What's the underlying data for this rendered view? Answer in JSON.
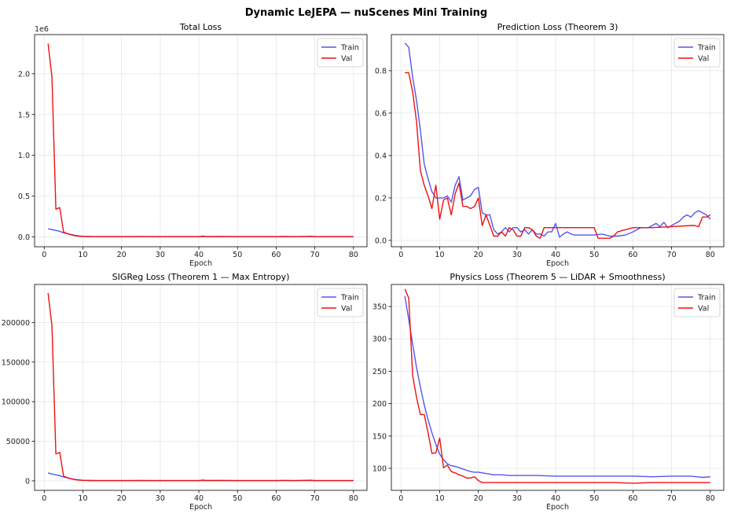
{
  "suptitle": "Dynamic LeJEPA — nuScenes Mini Training",
  "chart_data": [
    {
      "type": "line",
      "title": "Total Loss",
      "xlabel": "Epoch",
      "ylabel": "",
      "xlim": [
        -2.5,
        83.5
      ],
      "ylim": [
        -0.12,
        2.48
      ],
      "xticks": [
        0,
        10,
        20,
        30,
        40,
        50,
        60,
        70,
        80
      ],
      "yticks": [
        0.0,
        0.5,
        1.0,
        1.5,
        2.0
      ],
      "ytick_labels": [
        "0.0",
        "0.5",
        "1.0",
        "1.5",
        "2.0"
      ],
      "offset_text": "1e6",
      "grid": true,
      "legend_loc": "top-right",
      "series": [
        {
          "name": "Train",
          "color": "#5555ee",
          "x": [
            1,
            2,
            3,
            4,
            5,
            6,
            7,
            8,
            9,
            10,
            12,
            15,
            20,
            25,
            30,
            35,
            40,
            45,
            50,
            55,
            60,
            65,
            70,
            75,
            80
          ],
          "y": [
            0.1,
            0.09,
            0.08,
            0.07,
            0.05,
            0.04,
            0.03,
            0.02,
            0.012,
            0.008,
            0.005,
            0.004,
            0.004,
            0.004,
            0.004,
            0.004,
            0.004,
            0.004,
            0.004,
            0.004,
            0.004,
            0.004,
            0.004,
            0.004,
            0.004
          ]
        },
        {
          "name": "Val",
          "color": "#ee1111",
          "x": [
            1,
            2,
            3,
            4,
            5,
            6,
            7,
            8,
            9,
            10,
            12,
            15,
            20,
            25,
            30,
            35,
            40,
            41,
            42,
            45,
            50,
            55,
            60,
            62,
            65,
            69,
            70,
            75,
            80
          ],
          "y": [
            2.37,
            1.96,
            0.34,
            0.36,
            0.06,
            0.04,
            0.025,
            0.015,
            0.01,
            0.006,
            0.004,
            0.003,
            0.003,
            0.004,
            0.003,
            0.003,
            0.003,
            0.01,
            0.004,
            0.006,
            0.003,
            0.003,
            0.003,
            0.006,
            0.003,
            0.008,
            0.003,
            0.003,
            0.003
          ]
        }
      ]
    },
    {
      "type": "line",
      "title": "Prediction Loss (Theorem 3)",
      "xlabel": "Epoch",
      "ylabel": "",
      "xlim": [
        -2.5,
        83.5
      ],
      "ylim": [
        -0.03,
        0.97
      ],
      "xticks": [
        0,
        10,
        20,
        30,
        40,
        50,
        60,
        70,
        80
      ],
      "yticks": [
        0.0,
        0.2,
        0.4,
        0.6,
        0.8
      ],
      "ytick_labels": [
        "0.0",
        "0.2",
        "0.4",
        "0.6",
        "0.8"
      ],
      "offset_text": "",
      "grid": true,
      "legend_loc": "top-right",
      "series": [
        {
          "name": "Train",
          "color": "#5555ee",
          "x": [
            1,
            2,
            3,
            4,
            5,
            6,
            7,
            8,
            9,
            10,
            11,
            12,
            13,
            14,
            15,
            16,
            17,
            18,
            19,
            20,
            21,
            22,
            23,
            24,
            25,
            26,
            27,
            28,
            29,
            30,
            31,
            32,
            33,
            34,
            35,
            36,
            37,
            38,
            39,
            40,
            41,
            42,
            43,
            44,
            45,
            50,
            52,
            54,
            56,
            58,
            60,
            62,
            64,
            66,
            67,
            68,
            69,
            70,
            71,
            72,
            73,
            74,
            75,
            76,
            77,
            78,
            79,
            80
          ],
          "y": [
            0.93,
            0.91,
            0.77,
            0.66,
            0.52,
            0.36,
            0.29,
            0.23,
            0.2,
            0.2,
            0.2,
            0.21,
            0.18,
            0.26,
            0.3,
            0.19,
            0.2,
            0.21,
            0.24,
            0.25,
            0.13,
            0.12,
            0.12,
            0.05,
            0.03,
            0.04,
            0.06,
            0.04,
            0.06,
            0.06,
            0.04,
            0.05,
            0.03,
            0.05,
            0.03,
            0.03,
            0.02,
            0.04,
            0.04,
            0.08,
            0.015,
            0.03,
            0.04,
            0.03,
            0.025,
            0.025,
            0.03,
            0.02,
            0.02,
            0.025,
            0.04,
            0.06,
            0.06,
            0.08,
            0.065,
            0.085,
            0.06,
            0.07,
            0.08,
            0.09,
            0.11,
            0.12,
            0.11,
            0.13,
            0.14,
            0.13,
            0.12,
            0.1
          ]
        },
        {
          "name": "Val",
          "color": "#ee1111",
          "x": [
            1,
            2,
            3,
            4,
            5,
            6,
            7,
            8,
            9,
            10,
            11,
            12,
            13,
            14,
            15,
            16,
            17,
            18,
            19,
            20,
            21,
            22,
            23,
            24,
            25,
            26,
            27,
            28,
            29,
            30,
            31,
            32,
            33,
            34,
            35,
            36,
            37,
            38,
            39,
            40,
            45,
            50,
            51,
            52,
            53,
            54,
            55,
            56,
            60,
            65,
            70,
            75,
            76,
            77,
            78,
            79,
            80
          ],
          "y": [
            0.79,
            0.79,
            0.7,
            0.56,
            0.33,
            0.26,
            0.21,
            0.15,
            0.26,
            0.1,
            0.19,
            0.2,
            0.12,
            0.22,
            0.27,
            0.16,
            0.16,
            0.15,
            0.16,
            0.2,
            0.07,
            0.12,
            0.07,
            0.02,
            0.02,
            0.04,
            0.02,
            0.06,
            0.05,
            0.02,
            0.02,
            0.06,
            0.06,
            0.05,
            0.02,
            0.01,
            0.06,
            0.06,
            0.06,
            0.06,
            0.06,
            0.06,
            0.01,
            0.01,
            0.01,
            0.01,
            0.02,
            0.04,
            0.06,
            0.06,
            0.065,
            0.07,
            0.07,
            0.065,
            0.11,
            0.11,
            0.12
          ]
        }
      ]
    },
    {
      "type": "line",
      "title": "SIGReg Loss (Theorem 1 — Max Entropy)",
      "xlabel": "Epoch",
      "ylabel": "",
      "xlim": [
        -2.5,
        83.5
      ],
      "ylim": [
        -12000,
        248000
      ],
      "xticks": [
        0,
        10,
        20,
        30,
        40,
        50,
        60,
        70,
        80
      ],
      "yticks": [
        0,
        50000,
        100000,
        150000,
        200000
      ],
      "ytick_labels": [
        "0",
        "50000",
        "100000",
        "150000",
        "200000"
      ],
      "offset_text": "",
      "grid": true,
      "legend_loc": "top-right",
      "series": [
        {
          "name": "Train",
          "color": "#5555ee",
          "x": [
            1,
            2,
            3,
            4,
            5,
            6,
            7,
            8,
            9,
            10,
            12,
            15,
            20,
            25,
            30,
            35,
            40,
            45,
            50,
            55,
            60,
            65,
            70,
            75,
            80
          ],
          "y": [
            10000,
            8500,
            7600,
            6600,
            5000,
            3700,
            2700,
            1800,
            1200,
            700,
            400,
            300,
            300,
            300,
            300,
            300,
            300,
            300,
            300,
            300,
            300,
            300,
            300,
            300,
            300
          ]
        },
        {
          "name": "Val",
          "color": "#ee1111",
          "x": [
            1,
            2,
            3,
            4,
            5,
            6,
            7,
            8,
            9,
            10,
            12,
            15,
            20,
            25,
            30,
            35,
            40,
            41,
            42,
            45,
            50,
            55,
            60,
            62,
            65,
            69,
            70,
            75,
            80
          ],
          "y": [
            237000,
            196000,
            34000,
            36000,
            6000,
            4000,
            2500,
            1500,
            1000,
            600,
            400,
            300,
            300,
            400,
            300,
            300,
            300,
            1000,
            400,
            600,
            300,
            300,
            300,
            600,
            300,
            800,
            300,
            300,
            300
          ]
        }
      ]
    },
    {
      "type": "line",
      "title": "Physics Loss (Theorem 5 — LiDAR + Smoothness)",
      "xlabel": "Epoch",
      "ylabel": "",
      "xlim": [
        -2.5,
        83.5
      ],
      "ylim": [
        66,
        384
      ],
      "xticks": [
        0,
        10,
        20,
        30,
        40,
        50,
        60,
        70,
        80
      ],
      "yticks": [
        100,
        150,
        200,
        250,
        300,
        350
      ],
      "ytick_labels": [
        "100",
        "150",
        "200",
        "250",
        "300",
        "350"
      ],
      "offset_text": "",
      "grid": true,
      "legend_loc": "top-right",
      "series": [
        {
          "name": "Train",
          "color": "#5555ee",
          "x": [
            1,
            2,
            3,
            4,
            5,
            6,
            7,
            8,
            9,
            10,
            11,
            12,
            13,
            14,
            15,
            16,
            17,
            18,
            19,
            20,
            22,
            24,
            26,
            28,
            30,
            35,
            40,
            45,
            50,
            55,
            60,
            65,
            70,
            75,
            78,
            80
          ],
          "y": [
            366,
            330,
            292,
            256,
            226,
            198,
            175,
            155,
            137,
            122,
            113,
            107,
            104,
            103,
            101,
            99,
            97,
            95,
            94,
            94,
            92,
            90,
            90,
            89,
            89,
            89,
            88,
            88,
            88,
            88,
            88,
            87,
            88,
            88,
            86,
            87
          ]
        },
        {
          "name": "Val",
          "color": "#ee1111",
          "x": [
            1,
            2,
            3,
            4,
            5,
            6,
            7,
            8,
            9,
            10,
            11,
            12,
            13,
            14,
            15,
            16,
            17,
            18,
            19,
            20,
            21,
            22,
            24,
            26,
            28,
            30,
            35,
            40,
            45,
            50,
            55,
            60,
            65,
            70,
            75,
            80
          ],
          "y": [
            377,
            363,
            243,
            210,
            183,
            183,
            155,
            123,
            124,
            147,
            101,
            105,
            95,
            93,
            90,
            88,
            85,
            85,
            87,
            81,
            78,
            78,
            78,
            78,
            78,
            78,
            78,
            78,
            78,
            78,
            78,
            77,
            78,
            78,
            78,
            78
          ]
        }
      ]
    }
  ]
}
